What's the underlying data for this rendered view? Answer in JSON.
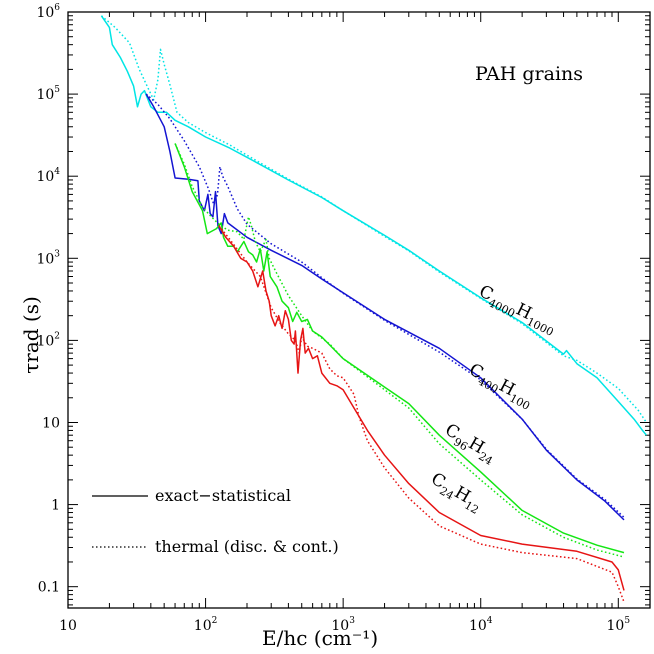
{
  "chart_data": {
    "type": "line",
    "title": "",
    "xlabel": "E/hc   (cm⁻¹)",
    "ylabel": "τrad (s)",
    "xscale": "log",
    "yscale": "log",
    "xlim": [
      10,
      170000
    ],
    "ylim": [
      0.055,
      1000000
    ],
    "grid": false,
    "legend_placement": "bottom-left",
    "x_tick_labels": [
      "10",
      "10²",
      "10³",
      "10⁴",
      "10⁵"
    ],
    "y_tick_labels": [
      "0.1",
      "1",
      "10",
      "10²",
      "10³",
      "10⁴",
      "10⁵",
      "10⁶"
    ],
    "annotation": "PAH grains",
    "legend": [
      {
        "label": "exact−statistical",
        "style": "solid"
      },
      {
        "label": "thermal (disc. & cont.)",
        "style": "dotted"
      }
    ],
    "series": [
      {
        "name": "C4000H1000",
        "label_main": [
          "C",
          "H"
        ],
        "label_sub": [
          "4000",
          "1000"
        ],
        "color": "#00e5e5",
        "style": "solid",
        "points": [
          [
            17.5,
            900000
          ],
          [
            20,
            650000
          ],
          [
            21,
            400000
          ],
          [
            24,
            280000
          ],
          [
            27,
            190000
          ],
          [
            30,
            125000
          ],
          [
            32,
            70000
          ],
          [
            34,
            100000
          ],
          [
            36,
            110000
          ],
          [
            40,
            70000
          ],
          [
            45,
            60000
          ],
          [
            52,
            60000
          ],
          [
            60,
            48000
          ],
          [
            75,
            40000
          ],
          [
            100,
            30000
          ],
          [
            150,
            22000
          ],
          [
            200,
            17000
          ],
          [
            400,
            9000
          ],
          [
            700,
            5500
          ],
          [
            1000,
            3800
          ],
          [
            2000,
            1900
          ],
          [
            3000,
            1250
          ],
          [
            5000,
            700
          ],
          [
            10000,
            330
          ],
          [
            20000,
            165
          ],
          [
            40000,
            68
          ],
          [
            42000,
            75
          ],
          [
            50000,
            52
          ],
          [
            70000,
            35
          ],
          [
            100000,
            18
          ],
          [
            130000,
            11
          ],
          [
            150000,
            8
          ],
          [
            160000,
            7
          ]
        ]
      },
      {
        "name": "C4000H1000 thermal",
        "color": "#00e5e5",
        "style": "dotted",
        "points": [
          [
            17.5,
            900000
          ],
          [
            22,
            650000
          ],
          [
            28,
            420000
          ],
          [
            33,
            200000
          ],
          [
            38,
            120000
          ],
          [
            42,
            85000
          ],
          [
            45,
            150000
          ],
          [
            47,
            350000
          ],
          [
            50,
            230000
          ],
          [
            55,
            130000
          ],
          [
            62,
            60000
          ],
          [
            75,
            45000
          ],
          [
            100,
            34000
          ],
          [
            150,
            24000
          ],
          [
            200,
            18000
          ],
          [
            400,
            9200
          ],
          [
            700,
            5600
          ],
          [
            1000,
            3800
          ],
          [
            2000,
            1850
          ],
          [
            3000,
            1230
          ],
          [
            5000,
            680
          ],
          [
            10000,
            325
          ],
          [
            20000,
            160
          ],
          [
            40000,
            65
          ],
          [
            50000,
            57
          ],
          [
            70000,
            40
          ],
          [
            100000,
            26
          ],
          [
            140000,
            14
          ],
          [
            160000,
            10
          ]
        ]
      },
      {
        "name": "C400H100",
        "label_main": [
          "C",
          "H"
        ],
        "label_sub": [
          "400",
          "100"
        ],
        "color": "#1414d2",
        "style": "solid",
        "points": [
          [
            37,
            100000
          ],
          [
            42,
            70000
          ],
          [
            50,
            40000
          ],
          [
            55,
            20000
          ],
          [
            60,
            9500
          ],
          [
            75,
            9200
          ],
          [
            88,
            8800
          ],
          [
            90,
            5000
          ],
          [
            98,
            3800
          ],
          [
            104,
            6000
          ],
          [
            108,
            3500
          ],
          [
            113,
            3200
          ],
          [
            118,
            6500
          ],
          [
            123,
            2500
          ],
          [
            130,
            2000
          ],
          [
            137,
            3500
          ],
          [
            145,
            2700
          ],
          [
            200,
            1800
          ],
          [
            300,
            1250
          ],
          [
            500,
            820
          ],
          [
            700,
            560
          ],
          [
            1000,
            380
          ],
          [
            2000,
            180
          ],
          [
            5000,
            80
          ],
          [
            10000,
            35
          ],
          [
            20000,
            11
          ],
          [
            30000,
            4.6
          ],
          [
            50000,
            2
          ],
          [
            80000,
            1.1
          ],
          [
            110000,
            0.65
          ]
        ]
      },
      {
        "name": "C400H100 thermal",
        "color": "#1414d2",
        "style": "dotted",
        "points": [
          [
            37,
            100000
          ],
          [
            45,
            75000
          ],
          [
            55,
            50000
          ],
          [
            70,
            27000
          ],
          [
            90,
            13000
          ],
          [
            105,
            7000
          ],
          [
            115,
            4500
          ],
          [
            122,
            6000
          ],
          [
            127,
            13000
          ],
          [
            133,
            10000
          ],
          [
            145,
            7500
          ],
          [
            170,
            4000
          ],
          [
            200,
            2600
          ],
          [
            300,
            1500
          ],
          [
            500,
            900
          ],
          [
            700,
            580
          ],
          [
            1000,
            375
          ],
          [
            2000,
            175
          ],
          [
            5000,
            72
          ],
          [
            10000,
            33
          ],
          [
            20000,
            11
          ],
          [
            30000,
            4.7
          ],
          [
            50000,
            2.05
          ],
          [
            80000,
            1.15
          ],
          [
            110000,
            0.7
          ]
        ]
      },
      {
        "name": "C96H24",
        "label_main": [
          "C",
          "H"
        ],
        "label_sub": [
          "96",
          "24"
        ],
        "color": "#14e614",
        "style": "solid",
        "points": [
          [
            60,
            25000
          ],
          [
            70,
            13000
          ],
          [
            80,
            6500
          ],
          [
            95,
            3800
          ],
          [
            103,
            2000
          ],
          [
            120,
            2300
          ],
          [
            130,
            2700
          ],
          [
            135,
            1800
          ],
          [
            145,
            1400
          ],
          [
            160,
            1400
          ],
          [
            170,
            1200
          ],
          [
            190,
            1600
          ],
          [
            205,
            1200
          ],
          [
            220,
            1100
          ],
          [
            235,
            900
          ],
          [
            250,
            1300
          ],
          [
            265,
            700
          ],
          [
            280,
            1200
          ],
          [
            295,
            600
          ],
          [
            330,
            450
          ],
          [
            360,
            300
          ],
          [
            400,
            250
          ],
          [
            430,
            170
          ],
          [
            460,
            220
          ],
          [
            500,
            170
          ],
          [
            550,
            180
          ],
          [
            600,
            130
          ],
          [
            700,
            110
          ],
          [
            1000,
            60
          ],
          [
            2000,
            27
          ],
          [
            3000,
            17
          ],
          [
            5000,
            7
          ],
          [
            10000,
            2.5
          ],
          [
            20000,
            0.85
          ],
          [
            40000,
            0.45
          ],
          [
            70000,
            0.32
          ],
          [
            110000,
            0.26
          ]
        ]
      },
      {
        "name": "C96H24 thermal",
        "color": "#14e614",
        "style": "dotted",
        "points": [
          [
            60,
            25000
          ],
          [
            70,
            14000
          ],
          [
            80,
            7500
          ],
          [
            95,
            4200
          ],
          [
            110,
            3200
          ],
          [
            125,
            2600
          ],
          [
            145,
            2200
          ],
          [
            170,
            2100
          ],
          [
            190,
            1700
          ],
          [
            205,
            3200
          ],
          [
            215,
            2500
          ],
          [
            230,
            1600
          ],
          [
            250,
            1200
          ],
          [
            275,
            1700
          ],
          [
            290,
            1000
          ],
          [
            330,
            650
          ],
          [
            400,
            350
          ],
          [
            500,
            200
          ],
          [
            600,
            130
          ],
          [
            800,
            90
          ],
          [
            1000,
            60
          ],
          [
            2000,
            25
          ],
          [
            3000,
            15
          ],
          [
            5000,
            5.5
          ],
          [
            10000,
            2
          ],
          [
            20000,
            0.75
          ],
          [
            40000,
            0.4
          ],
          [
            70000,
            0.28
          ],
          [
            110000,
            0.23
          ]
        ]
      },
      {
        "name": "C24H12",
        "label_main": [
          "C",
          "H"
        ],
        "label_sub": [
          "24",
          "12"
        ],
        "color": "#e61414",
        "style": "solid",
        "points": [
          [
            125,
            2500
          ],
          [
            140,
            1800
          ],
          [
            160,
            1400
          ],
          [
            180,
            1000
          ],
          [
            200,
            900
          ],
          [
            220,
            700
          ],
          [
            240,
            450
          ],
          [
            260,
            700
          ],
          [
            275,
            400
          ],
          [
            290,
            300
          ],
          [
            300,
            200
          ],
          [
            320,
            150
          ],
          [
            340,
            200
          ],
          [
            360,
            140
          ],
          [
            380,
            230
          ],
          [
            400,
            180
          ],
          [
            420,
            100
          ],
          [
            440,
            90
          ],
          [
            450,
            130
          ],
          [
            470,
            40
          ],
          [
            490,
            100
          ],
          [
            510,
            140
          ],
          [
            530,
            70
          ],
          [
            560,
            80
          ],
          [
            600,
            60
          ],
          [
            650,
            65
          ],
          [
            700,
            40
          ],
          [
            800,
            30
          ],
          [
            900,
            28
          ],
          [
            1000,
            25
          ],
          [
            1200,
            15
          ],
          [
            1500,
            8
          ],
          [
            2000,
            4
          ],
          [
            3000,
            1.8
          ],
          [
            5000,
            0.8
          ],
          [
            10000,
            0.42
          ],
          [
            20000,
            0.33
          ],
          [
            50000,
            0.27
          ],
          [
            90000,
            0.2
          ],
          [
            100000,
            0.16
          ],
          [
            110000,
            0.09
          ]
        ]
      },
      {
        "name": "C24H12 thermal",
        "color": "#e61414",
        "style": "dotted",
        "points": [
          [
            125,
            2500
          ],
          [
            150,
            1700
          ],
          [
            200,
            900
          ],
          [
            250,
            600
          ],
          [
            300,
            250
          ],
          [
            350,
            160
          ],
          [
            400,
            120
          ],
          [
            450,
            100
          ],
          [
            480,
            70
          ],
          [
            500,
            110
          ],
          [
            550,
            85
          ],
          [
            600,
            80
          ],
          [
            700,
            70
          ],
          [
            800,
            45
          ],
          [
            900,
            37
          ],
          [
            1000,
            35
          ],
          [
            1200,
            22
          ],
          [
            1300,
            12
          ],
          [
            1500,
            6
          ],
          [
            2000,
            2.8
          ],
          [
            3000,
            1.2
          ],
          [
            5000,
            0.55
          ],
          [
            10000,
            0.33
          ],
          [
            20000,
            0.26
          ],
          [
            50000,
            0.22
          ],
          [
            90000,
            0.15
          ],
          [
            100000,
            0.1
          ],
          [
            110000,
            0.065
          ]
        ]
      }
    ]
  }
}
